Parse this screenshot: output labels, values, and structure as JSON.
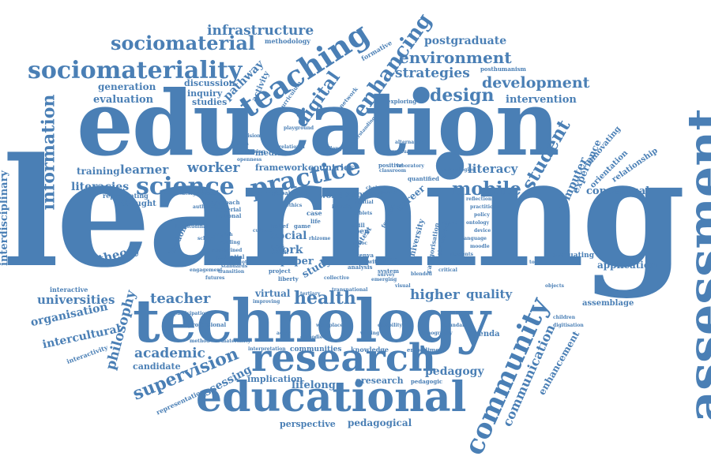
{
  "color": "#4A7FB5",
  "words": [
    "learning",
    "education",
    "technology",
    "assessment",
    "educational",
    "research",
    "teaching",
    "community",
    "science",
    "practice",
    "mobile",
    "student",
    "information",
    "sociomateriality",
    "sociomaterial",
    "infrastructure",
    "enhancing",
    "digital",
    "design",
    "development",
    "environment",
    "strategies",
    "postgraduate",
    "intervention",
    "literacy",
    "literacies",
    "worker",
    "training",
    "learner",
    "supervision",
    "academic",
    "teacher",
    "health",
    "higher",
    "quality",
    "universities",
    "organisation",
    "intercultural",
    "philosophy",
    "interdisciplinary",
    "theory",
    "candidate",
    "assessing",
    "lifelong",
    "implication",
    "eresearch",
    "pedagogy",
    "pedagogical",
    "perspective",
    "communication",
    "enhancement",
    "agenda",
    "application",
    "evaluating",
    "assemblage",
    "conceptual",
    "computer",
    "innovating",
    "orientation",
    "relationship",
    "experience",
    "evaluation",
    "generation",
    "pathway",
    "activity",
    "discussion",
    "inquiry",
    "studies",
    "methodology",
    "formative",
    "curriculum",
    "posthumanism",
    "exploring",
    "network",
    "media",
    "framework",
    "countries",
    "social",
    "work",
    "paper",
    "study",
    "virtual",
    "career",
    "university",
    "thought",
    "representing",
    "london",
    "interactive",
    "interactivity",
    "representation",
    "professional",
    "communities",
    "knowledge",
    "embodiment",
    "pedagogic",
    "support",
    "world",
    "global",
    "adult",
    "national",
    "quantified",
    "analysis",
    "project",
    "feminist",
    "twitter",
    "kenya",
    "context",
    "case",
    "belief",
    "skill",
    "open",
    "standards",
    "transition",
    "liberty",
    "material",
    "potential",
    "impact",
    "system",
    "approach",
    "ethics",
    "categorisation",
    "glocalization",
    "positive",
    "laboratory",
    "model",
    "playground",
    "understanding",
    "challenge",
    "tertiary",
    "relational",
    "interpretation",
    "improving",
    "culture",
    "toolkit",
    "choice",
    "tablets",
    "game",
    "life",
    "alternative",
    "technologies",
    "flows",
    "rhizome",
    "design-based",
    "mooc",
    "openness",
    "semiotic",
    "identity",
    "graduate",
    "post",
    "spatial",
    "reflection",
    "practitioner",
    "policy",
    "ontology",
    "device",
    "language",
    "moodle",
    "classroom",
    "blended",
    "critical",
    "vision",
    "data",
    "sharing",
    "futures",
    "english",
    "reading",
    "reimagined",
    "longitudinal",
    "collective",
    "transnational",
    "emerging",
    "survey",
    "visual",
    "ethnography",
    "disability",
    "writing",
    "actor",
    "workplace",
    "embodied",
    "materiality",
    "method",
    "participation",
    "space",
    "students",
    "engagement",
    "school",
    "authentic",
    "boundary",
    "tools",
    "objects",
    "children",
    "digitisation"
  ]
}
